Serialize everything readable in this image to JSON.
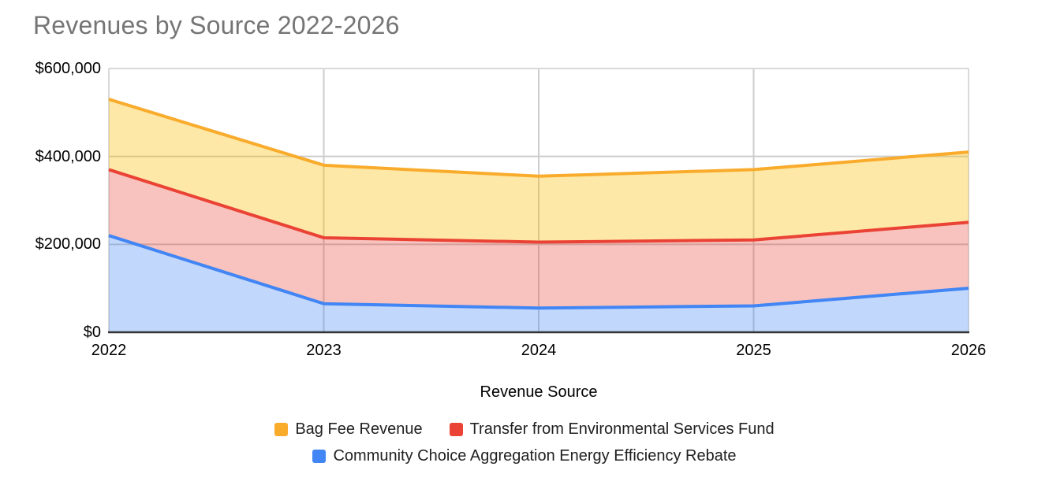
{
  "page": {
    "background_color": "#ffffff"
  },
  "chart_data": {
    "type": "area",
    "stacked": true,
    "title": "Revenues by Source 2022-2026",
    "title_color": "#757575",
    "xlabel": "Revenue Source",
    "ylabel": "",
    "categories": [
      "2022",
      "2023",
      "2024",
      "2025",
      "2026"
    ],
    "series": [
      {
        "name": "Bag Fee Revenue",
        "color": "#F9AB2C",
        "fill": "rgba(251,188,4,0.35)",
        "values": [
          160000,
          165000,
          150000,
          160000,
          160000
        ]
      },
      {
        "name": "Transfer from Environmental Services Fund",
        "color": "#EA4335",
        "fill": "rgba(234,67,53,0.32)",
        "values": [
          150000,
          150000,
          150000,
          150000,
          150000
        ]
      },
      {
        "name": "Community Choice Aggregation Energy Efficiency Rebate",
        "color": "#4285F4",
        "fill": "rgba(66,133,244,0.33)",
        "values": [
          220000,
          65000,
          55000,
          60000,
          100000
        ]
      }
    ],
    "stack_order_bottom_to_top": [
      2,
      1,
      0
    ],
    "stacked_totals": [
      530000,
      380000,
      355000,
      370000,
      410000
    ],
    "y_axis": {
      "min": 0,
      "max": 600000,
      "tick_step": 200000,
      "tick_labels": [
        "$0",
        "$200,000",
        "$400,000",
        "$600,000"
      ]
    },
    "legend_position": "bottom",
    "grid": true,
    "gridline_color": "#cccccc",
    "plot_border_color": "#d9d9d9",
    "baseline_color": "#333333",
    "tick_label_color": "#000000",
    "legend_text_color": "#212121"
  }
}
